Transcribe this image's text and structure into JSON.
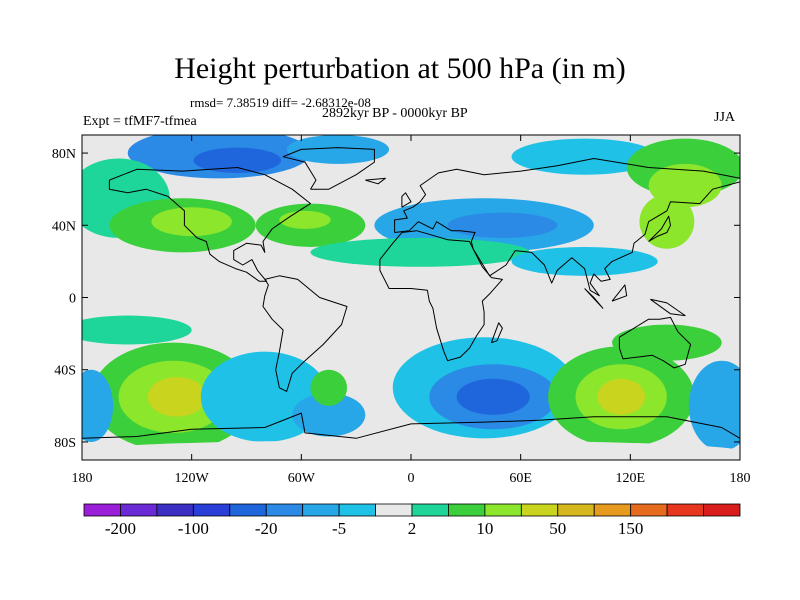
{
  "header": {
    "title": "Height perturbation at 500 hPa (in m)",
    "stats": "rmsd= 7.38519 diff= -2.68312e-08",
    "experiment": "Expt = tfMF7-tfmea",
    "period": "2892kyr BP - 0000kyr BP",
    "season": "JJA"
  },
  "chart_data": {
    "type": "heatmap",
    "title": "Height perturbation at 500 hPa (in m)",
    "units": "m",
    "xlim": [
      -180,
      180
    ],
    "ylim": [
      -90,
      90
    ],
    "x_ticks": [
      {
        "value": -180,
        "label": "180"
      },
      {
        "value": -120,
        "label": "120W"
      },
      {
        "value": -60,
        "label": "60W"
      },
      {
        "value": 0,
        "label": "0"
      },
      {
        "value": 60,
        "label": "60E"
      },
      {
        "value": 120,
        "label": "120E"
      },
      {
        "value": 180,
        "label": "180"
      }
    ],
    "y_ticks": [
      {
        "value": 80,
        "label": "80N"
      },
      {
        "value": 40,
        "label": "40N"
      },
      {
        "value": 0,
        "label": "0"
      },
      {
        "value": -40,
        "label": "40S"
      },
      {
        "value": -80,
        "label": "80S"
      }
    ],
    "colorbar": {
      "colors": [
        "#9b1fd9",
        "#6a2bd6",
        "#3b2fc4",
        "#2a3fd8",
        "#1f66dc",
        "#2a8ae6",
        "#27a6e8",
        "#1fc2e6",
        "#e8e8e8",
        "#1ed69a",
        "#3ccf3c",
        "#8ce62c",
        "#c8d41e",
        "#d4b81e",
        "#e69a1e",
        "#e66b1e",
        "#e6361e",
        "#d91c1c"
      ],
      "labels": [
        {
          "after_box": 1,
          "text": "-200"
        },
        {
          "after_box": 3,
          "text": "-100"
        },
        {
          "after_box": 5,
          "text": "-20"
        },
        {
          "after_box": 7,
          "text": "-5"
        },
        {
          "after_box": 9,
          "text": "2"
        },
        {
          "after_box": 11,
          "text": "10"
        },
        {
          "after_box": 13,
          "text": "50"
        },
        {
          "after_box": 15,
          "text": "150"
        }
      ]
    },
    "anomaly_regions": [
      {
        "lon": -105,
        "lat": 80,
        "rlon": 50,
        "rlat": 14,
        "level": 5
      },
      {
        "lon": -95,
        "lat": 76,
        "rlon": 24,
        "rlat": 7,
        "level": 4
      },
      {
        "lon": -40,
        "lat": 82,
        "rlon": 28,
        "rlat": 8,
        "level": 6
      },
      {
        "lon": 95,
        "lat": 78,
        "rlon": 40,
        "rlat": 10,
        "level": 7
      },
      {
        "lon": 150,
        "lat": 72,
        "rlon": 32,
        "rlat": 16,
        "level": 10
      },
      {
        "lon": 150,
        "lat": 62,
        "rlon": 20,
        "rlat": 12,
        "level": 11
      },
      {
        "lon": -160,
        "lat": 55,
        "rlon": 28,
        "rlat": 22,
        "level": 9
      },
      {
        "lon": -125,
        "lat": 40,
        "rlon": 40,
        "rlat": 15,
        "level": 10
      },
      {
        "lon": -120,
        "lat": 42,
        "rlon": 22,
        "rlat": 8,
        "level": 11
      },
      {
        "lon": -55,
        "lat": 40,
        "rlon": 30,
        "rlat": 12,
        "level": 10
      },
      {
        "lon": -58,
        "lat": 43,
        "rlon": 14,
        "rlat": 5,
        "level": 11
      },
      {
        "lon": 40,
        "lat": 40,
        "rlon": 60,
        "rlat": 15,
        "level": 6
      },
      {
        "lon": 50,
        "lat": 40,
        "rlon": 30,
        "rlat": 7,
        "level": 5
      },
      {
        "lon": 5,
        "lat": 25,
        "rlon": 60,
        "rlat": 8,
        "level": 9
      },
      {
        "lon": 95,
        "lat": 20,
        "rlon": 40,
        "rlat": 8,
        "level": 7
      },
      {
        "lon": 140,
        "lat": 42,
        "rlon": 15,
        "rlat": 15,
        "level": 11
      },
      {
        "lon": -155,
        "lat": -18,
        "rlon": 35,
        "rlat": 8,
        "level": 9
      },
      {
        "lon": -130,
        "lat": -55,
        "rlon": 45,
        "rlat": 30,
        "level": 10
      },
      {
        "lon": -130,
        "lat": -55,
        "rlon": 30,
        "rlat": 20,
        "level": 11
      },
      {
        "lon": -128,
        "lat": -55,
        "rlon": 16,
        "rlat": 11,
        "level": 12
      },
      {
        "lon": -80,
        "lat": -55,
        "rlon": 35,
        "rlat": 25,
        "level": 7
      },
      {
        "lon": -45,
        "lat": -65,
        "rlon": 20,
        "rlat": 12,
        "level": 6
      },
      {
        "lon": -45,
        "lat": -50,
        "rlon": 10,
        "rlat": 10,
        "level": 10
      },
      {
        "lon": 40,
        "lat": -50,
        "rlon": 50,
        "rlat": 28,
        "level": 7
      },
      {
        "lon": 45,
        "lat": -55,
        "rlon": 35,
        "rlat": 18,
        "level": 5
      },
      {
        "lon": 45,
        "lat": -55,
        "rlon": 20,
        "rlat": 10,
        "level": 4
      },
      {
        "lon": 115,
        "lat": -55,
        "rlon": 40,
        "rlat": 28,
        "level": 10
      },
      {
        "lon": 115,
        "lat": -55,
        "rlon": 25,
        "rlat": 18,
        "level": 11
      },
      {
        "lon": 115,
        "lat": -55,
        "rlon": 13,
        "rlat": 10,
        "level": 12
      },
      {
        "lon": 170,
        "lat": -60,
        "rlon": 18,
        "rlat": 25,
        "level": 6
      },
      {
        "lon": -175,
        "lat": -60,
        "rlon": 12,
        "rlat": 20,
        "level": 6
      },
      {
        "lon": 140,
        "lat": -25,
        "rlon": 30,
        "rlat": 10,
        "level": 10
      },
      {
        "lon": 0,
        "lat": -85,
        "rlon": 180,
        "rlat": 6,
        "level": 8
      }
    ]
  }
}
